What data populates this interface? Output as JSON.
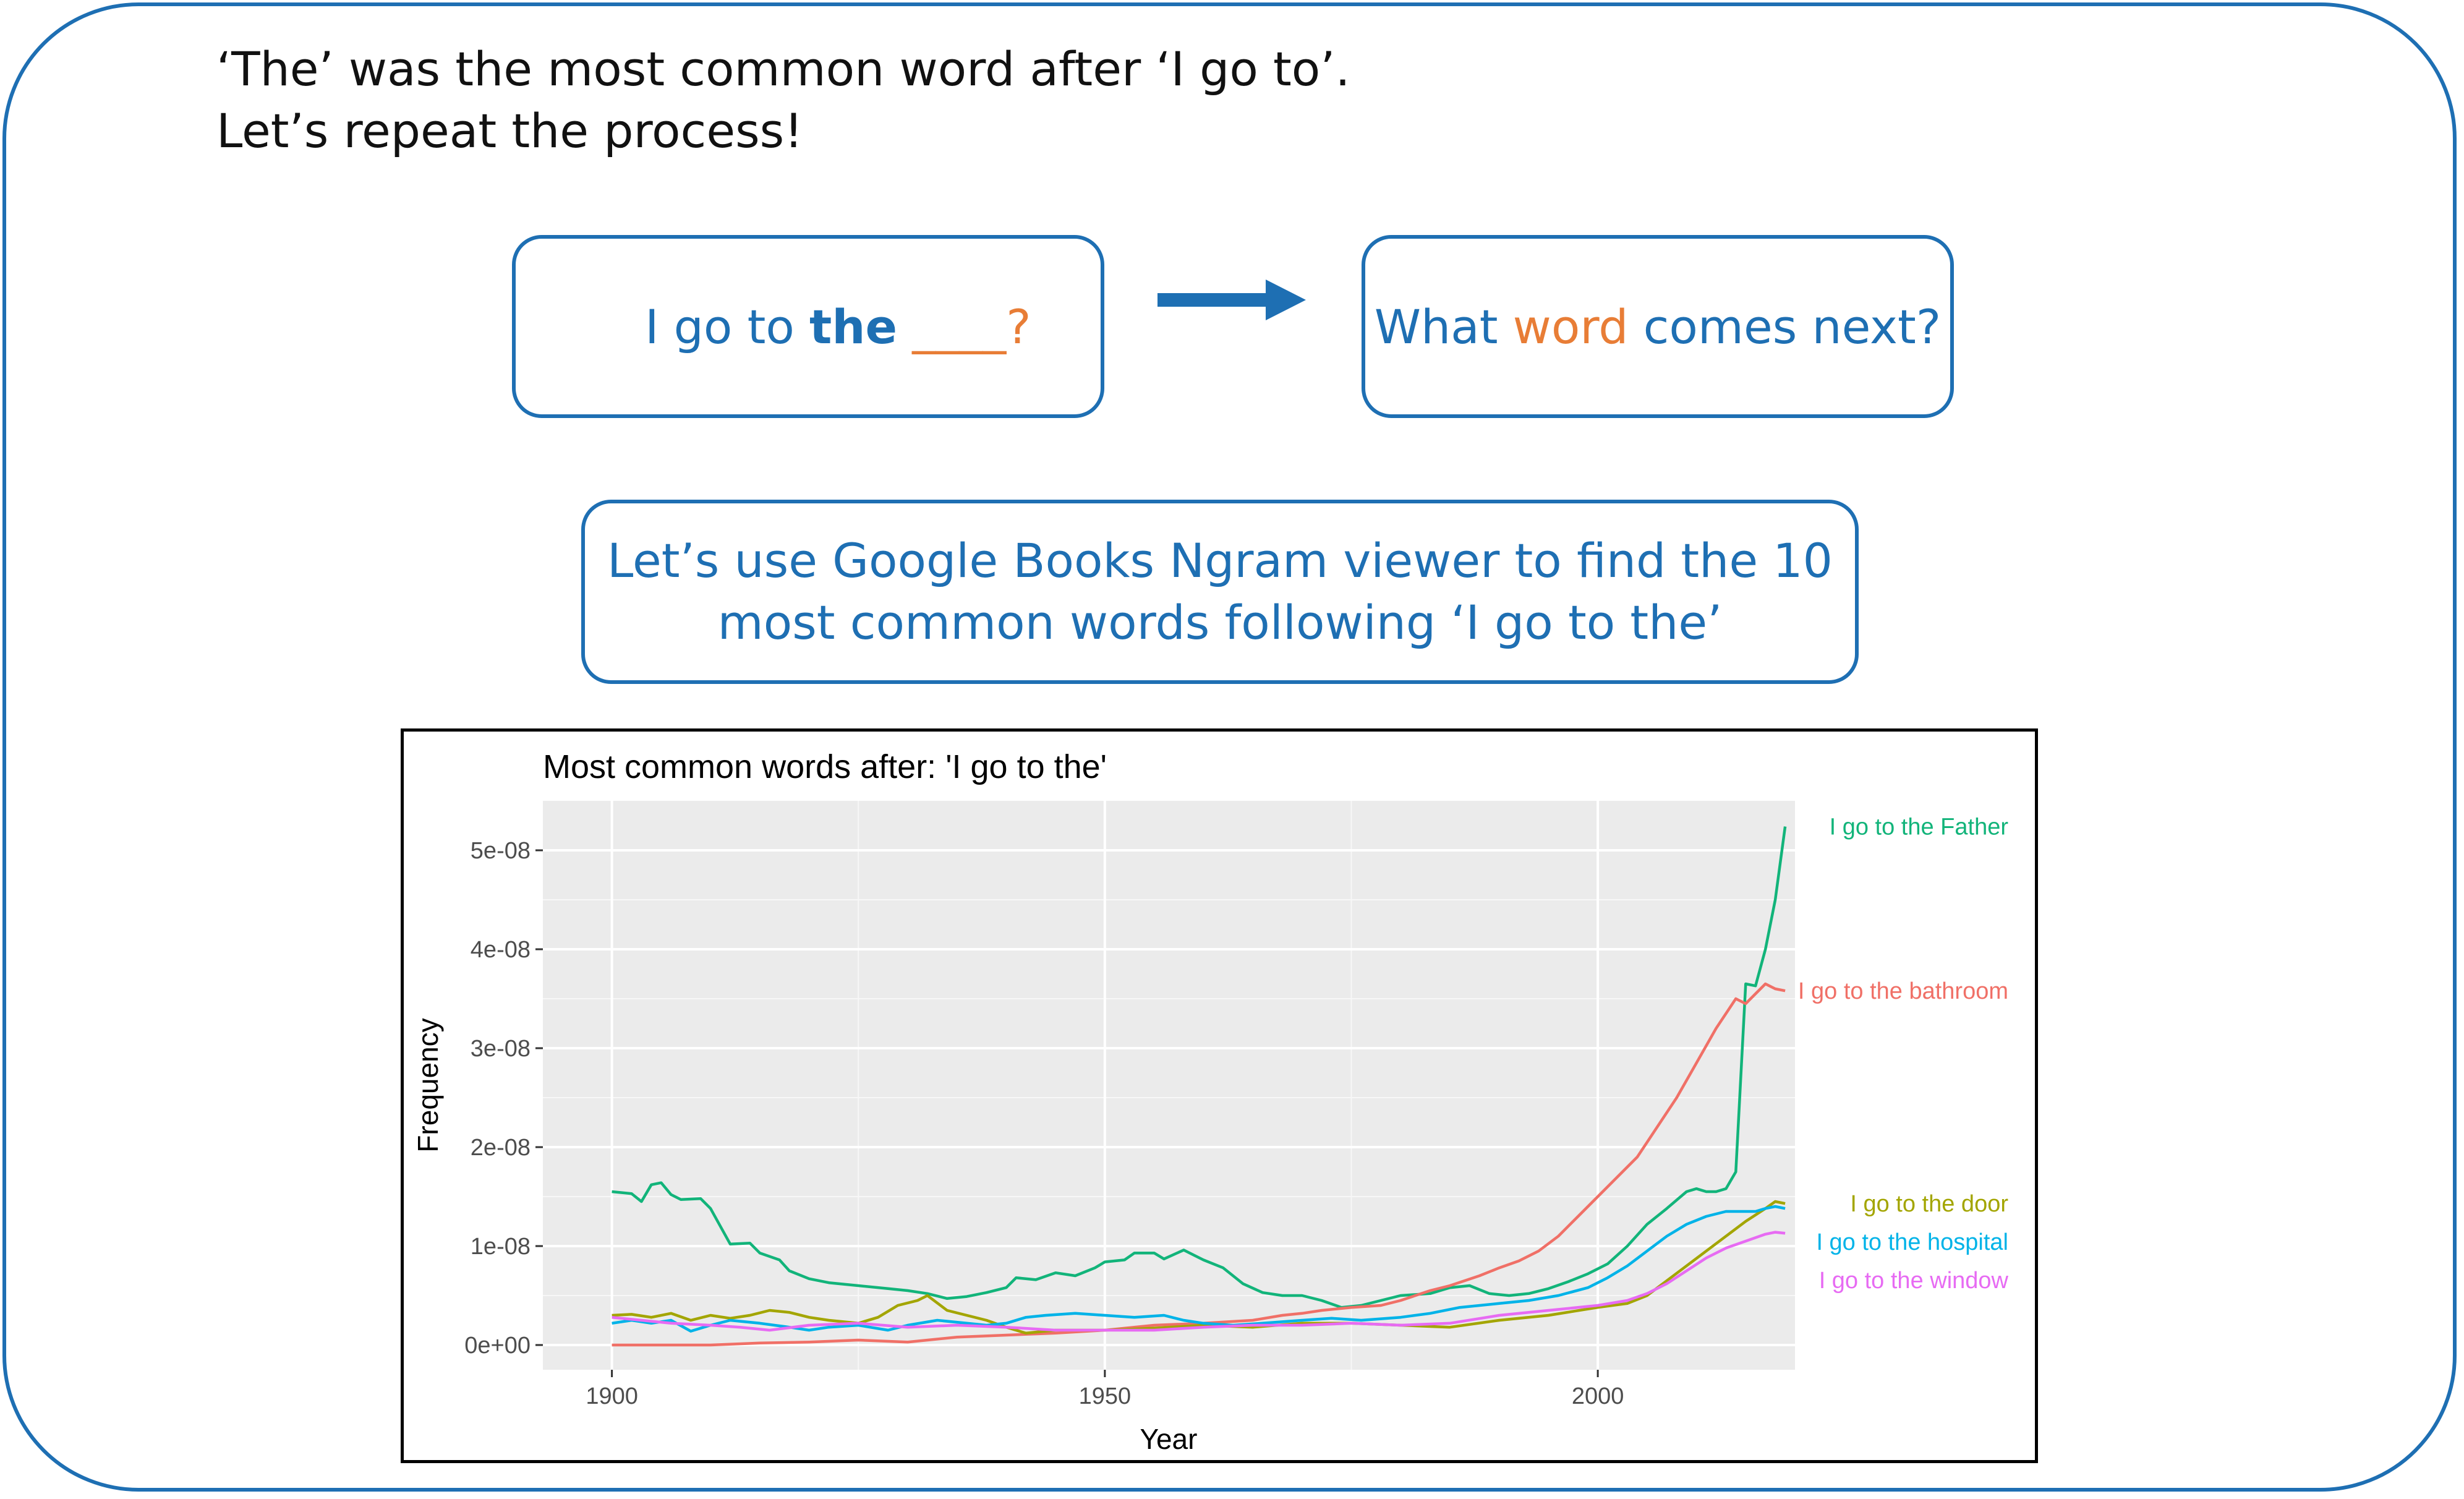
{
  "intro": {
    "line1": "‘The’ was the most common word after ‘I go to’.",
    "line2": "Let’s repeat the process!"
  },
  "prompt_box": {
    "prefix": "I go to ",
    "bold": "the",
    "blank": " ____?"
  },
  "question_box": {
    "part1": "What ",
    "accent": "word",
    "part2": " comes next?"
  },
  "ngram_box": {
    "line1": "Let’s use Google Books Ngram viewer to find the 10",
    "line2": "most common words following ‘I go to the’"
  },
  "colors": {
    "accent_blue": "#1e6fb3",
    "accent_orange": "#e87d36"
  },
  "chart_data": {
    "type": "line",
    "title": "Most common words after: 'I go to the'",
    "xlabel": "Year",
    "ylabel": "Frequency",
    "xlim": [
      1893,
      2020
    ],
    "ylim": [
      -2.5e-09,
      5.5e-08
    ],
    "x_ticks": [
      1900,
      1950,
      2000
    ],
    "x_tick_labels": [
      "1900",
      "1950",
      "2000"
    ],
    "y_ticks": [
      0,
      1e-08,
      2e-08,
      3e-08,
      4e-08,
      5e-08
    ],
    "y_tick_labels": [
      "0e+00",
      "1e-08",
      "2e-08",
      "3e-08",
      "4e-08",
      "5e-08"
    ],
    "grid": true,
    "legend": "direct labels at right",
    "series": [
      {
        "name": "I go to the Father",
        "color": "#12b47a",
        "points": [
          [
            1900,
            1.55e-08
          ],
          [
            1902,
            1.53e-08
          ],
          [
            1903,
            1.45e-08
          ],
          [
            1904,
            1.62e-08
          ],
          [
            1905,
            1.64e-08
          ],
          [
            1906,
            1.52e-08
          ],
          [
            1907,
            1.47e-08
          ],
          [
            1909,
            1.48e-08
          ],
          [
            1910,
            1.38e-08
          ],
          [
            1912,
            1.02e-08
          ],
          [
            1914,
            1.03e-08
          ],
          [
            1915,
            9.3e-09
          ],
          [
            1917,
            8.6e-09
          ],
          [
            1918,
            7.5e-09
          ],
          [
            1920,
            6.7e-09
          ],
          [
            1922,
            6.3e-09
          ],
          [
            1925,
            6e-09
          ],
          [
            1928,
            5.7e-09
          ],
          [
            1930,
            5.5e-09
          ],
          [
            1932,
            5.2e-09
          ],
          [
            1934,
            4.7e-09
          ],
          [
            1936,
            4.9e-09
          ],
          [
            1938,
            5.3e-09
          ],
          [
            1940,
            5.8e-09
          ],
          [
            1941,
            6.8e-09
          ],
          [
            1943,
            6.6e-09
          ],
          [
            1945,
            7.3e-09
          ],
          [
            1947,
            7e-09
          ],
          [
            1949,
            7.8e-09
          ],
          [
            1950,
            8.4e-09
          ],
          [
            1952,
            8.6e-09
          ],
          [
            1953,
            9.3e-09
          ],
          [
            1955,
            9.3e-09
          ],
          [
            1956,
            8.7e-09
          ],
          [
            1958,
            9.6e-09
          ],
          [
            1960,
            8.6e-09
          ],
          [
            1962,
            7.8e-09
          ],
          [
            1964,
            6.2e-09
          ],
          [
            1966,
            5.3e-09
          ],
          [
            1968,
            5e-09
          ],
          [
            1970,
            5e-09
          ],
          [
            1972,
            4.5e-09
          ],
          [
            1974,
            3.8e-09
          ],
          [
            1976,
            4e-09
          ],
          [
            1978,
            4.5e-09
          ],
          [
            1980,
            5e-09
          ],
          [
            1983,
            5.2e-09
          ],
          [
            1985,
            5.8e-09
          ],
          [
            1987,
            6e-09
          ],
          [
            1989,
            5.2e-09
          ],
          [
            1991,
            5e-09
          ],
          [
            1993,
            5.2e-09
          ],
          [
            1995,
            5.7e-09
          ],
          [
            1997,
            6.4e-09
          ],
          [
            1999,
            7.2e-09
          ],
          [
            2001,
            8.2e-09
          ],
          [
            2003,
            1e-08
          ],
          [
            2005,
            1.22e-08
          ],
          [
            2007,
            1.38e-08
          ],
          [
            2009,
            1.55e-08
          ],
          [
            2010,
            1.58e-08
          ],
          [
            2011,
            1.55e-08
          ],
          [
            2012,
            1.55e-08
          ],
          [
            2013,
            1.58e-08
          ],
          [
            2014,
            1.75e-08
          ],
          [
            2015,
            3.65e-08
          ],
          [
            2016,
            3.63e-08
          ],
          [
            2017,
            4e-08
          ],
          [
            2018,
            4.5e-08
          ],
          [
            2019,
            5.24e-08
          ]
        ]
      },
      {
        "name": "I go to the bathroom",
        "color": "#f07067",
        "points": [
          [
            1900,
            0.0
          ],
          [
            1905,
            0.0
          ],
          [
            1910,
            0.0
          ],
          [
            1915,
            2e-10
          ],
          [
            1920,
            3e-10
          ],
          [
            1925,
            5e-10
          ],
          [
            1930,
            3e-10
          ],
          [
            1935,
            8e-10
          ],
          [
            1940,
            1e-09
          ],
          [
            1945,
            1.2e-09
          ],
          [
            1950,
            1.5e-09
          ],
          [
            1955,
            2e-09
          ],
          [
            1960,
            2.2e-09
          ],
          [
            1965,
            2.5e-09
          ],
          [
            1968,
            3e-09
          ],
          [
            1970,
            3.2e-09
          ],
          [
            1972,
            3.5e-09
          ],
          [
            1975,
            3.8e-09
          ],
          [
            1978,
            4e-09
          ],
          [
            1980,
            4.5e-09
          ],
          [
            1983,
            5.5e-09
          ],
          [
            1985,
            6e-09
          ],
          [
            1988,
            7e-09
          ],
          [
            1990,
            7.8e-09
          ],
          [
            1992,
            8.5e-09
          ],
          [
            1994,
            9.5e-09
          ],
          [
            1996,
            1.1e-08
          ],
          [
            1998,
            1.3e-08
          ],
          [
            2000,
            1.5e-08
          ],
          [
            2002,
            1.7e-08
          ],
          [
            2004,
            1.9e-08
          ],
          [
            2006,
            2.2e-08
          ],
          [
            2008,
            2.5e-08
          ],
          [
            2010,
            2.85e-08
          ],
          [
            2012,
            3.2e-08
          ],
          [
            2014,
            3.5e-08
          ],
          [
            2015,
            3.45e-08
          ],
          [
            2016,
            3.55e-08
          ],
          [
            2017,
            3.65e-08
          ],
          [
            2018,
            3.6e-08
          ],
          [
            2019,
            3.58e-08
          ]
        ]
      },
      {
        "name": "I go to the door",
        "color": "#a3a500",
        "points": [
          [
            1900,
            3e-09
          ],
          [
            1902,
            3.1e-09
          ],
          [
            1904,
            2.8e-09
          ],
          [
            1906,
            3.2e-09
          ],
          [
            1908,
            2.5e-09
          ],
          [
            1910,
            3e-09
          ],
          [
            1912,
            2.7e-09
          ],
          [
            1914,
            3e-09
          ],
          [
            1916,
            3.5e-09
          ],
          [
            1918,
            3.3e-09
          ],
          [
            1920,
            2.8e-09
          ],
          [
            1922,
            2.5e-09
          ],
          [
            1925,
            2.2e-09
          ],
          [
            1927,
            2.8e-09
          ],
          [
            1929,
            4e-09
          ],
          [
            1931,
            4.5e-09
          ],
          [
            1932,
            5e-09
          ],
          [
            1934,
            3.5e-09
          ],
          [
            1936,
            3e-09
          ],
          [
            1938,
            2.5e-09
          ],
          [
            1940,
            1.8e-09
          ],
          [
            1942,
            1.2e-09
          ],
          [
            1945,
            1.5e-09
          ],
          [
            1950,
            1.5e-09
          ],
          [
            1955,
            1.7e-09
          ],
          [
            1960,
            2e-09
          ],
          [
            1965,
            1.8e-09
          ],
          [
            1970,
            2.2e-09
          ],
          [
            1975,
            2.2e-09
          ],
          [
            1980,
            2e-09
          ],
          [
            1985,
            1.8e-09
          ],
          [
            1990,
            2.5e-09
          ],
          [
            1995,
            3e-09
          ],
          [
            2000,
            3.8e-09
          ],
          [
            2003,
            4.2e-09
          ],
          [
            2005,
            5e-09
          ],
          [
            2007,
            6.5e-09
          ],
          [
            2009,
            8e-09
          ],
          [
            2011,
            9.5e-09
          ],
          [
            2013,
            1.1e-08
          ],
          [
            2015,
            1.25e-08
          ],
          [
            2017,
            1.38e-08
          ],
          [
            2018,
            1.45e-08
          ],
          [
            2019,
            1.43e-08
          ]
        ]
      },
      {
        "name": "I go to the hospital",
        "color": "#00b3e8",
        "points": [
          [
            1900,
            2.2e-09
          ],
          [
            1902,
            2.5e-09
          ],
          [
            1904,
            2.2e-09
          ],
          [
            1906,
            2.5e-09
          ],
          [
            1908,
            1.4e-09
          ],
          [
            1910,
            2e-09
          ],
          [
            1912,
            2.5e-09
          ],
          [
            1915,
            2.2e-09
          ],
          [
            1918,
            1.8e-09
          ],
          [
            1920,
            1.5e-09
          ],
          [
            1922,
            1.8e-09
          ],
          [
            1925,
            2e-09
          ],
          [
            1928,
            1.5e-09
          ],
          [
            1930,
            2e-09
          ],
          [
            1933,
            2.5e-09
          ],
          [
            1936,
            2.2e-09
          ],
          [
            1938,
            2e-09
          ],
          [
            1940,
            2.2e-09
          ],
          [
            1942,
            2.8e-09
          ],
          [
            1944,
            3e-09
          ],
          [
            1947,
            3.2e-09
          ],
          [
            1950,
            3e-09
          ],
          [
            1953,
            2.8e-09
          ],
          [
            1956,
            3e-09
          ],
          [
            1958,
            2.5e-09
          ],
          [
            1960,
            2.2e-09
          ],
          [
            1963,
            2e-09
          ],
          [
            1966,
            2.2e-09
          ],
          [
            1970,
            2.5e-09
          ],
          [
            1973,
            2.7e-09
          ],
          [
            1976,
            2.5e-09
          ],
          [
            1980,
            2.8e-09
          ],
          [
            1983,
            3.2e-09
          ],
          [
            1986,
            3.8e-09
          ],
          [
            1990,
            4.2e-09
          ],
          [
            1993,
            4.5e-09
          ],
          [
            1996,
            5e-09
          ],
          [
            1999,
            5.8e-09
          ],
          [
            2001,
            6.8e-09
          ],
          [
            2003,
            8e-09
          ],
          [
            2005,
            9.5e-09
          ],
          [
            2007,
            1.1e-08
          ],
          [
            2009,
            1.22e-08
          ],
          [
            2011,
            1.3e-08
          ],
          [
            2013,
            1.35e-08
          ],
          [
            2015,
            1.35e-08
          ],
          [
            2016,
            1.35e-08
          ],
          [
            2017,
            1.38e-08
          ],
          [
            2018,
            1.4e-08
          ],
          [
            2019,
            1.38e-08
          ]
        ]
      },
      {
        "name": "I go to the window",
        "color": "#e76bf3",
        "points": [
          [
            1900,
            2.8e-09
          ],
          [
            1903,
            2.5e-09
          ],
          [
            1906,
            2.2e-09
          ],
          [
            1910,
            2e-09
          ],
          [
            1913,
            1.8e-09
          ],
          [
            1916,
            1.5e-09
          ],
          [
            1920,
            2e-09
          ],
          [
            1925,
            2.2e-09
          ],
          [
            1930,
            1.8e-09
          ],
          [
            1935,
            2e-09
          ],
          [
            1940,
            1.8e-09
          ],
          [
            1945,
            1.5e-09
          ],
          [
            1950,
            1.5e-09
          ],
          [
            1955,
            1.5e-09
          ],
          [
            1960,
            1.8e-09
          ],
          [
            1965,
            2e-09
          ],
          [
            1970,
            2e-09
          ],
          [
            1975,
            2.2e-09
          ],
          [
            1980,
            2e-09
          ],
          [
            1985,
            2.2e-09
          ],
          [
            1990,
            3e-09
          ],
          [
            1995,
            3.5e-09
          ],
          [
            2000,
            4e-09
          ],
          [
            2003,
            4.5e-09
          ],
          [
            2005,
            5.2e-09
          ],
          [
            2007,
            6.2e-09
          ],
          [
            2009,
            7.5e-09
          ],
          [
            2011,
            8.8e-09
          ],
          [
            2013,
            9.8e-09
          ],
          [
            2015,
            1.05e-08
          ],
          [
            2017,
            1.12e-08
          ],
          [
            2018,
            1.14e-08
          ],
          [
            2019,
            1.13e-08
          ]
        ]
      }
    ]
  }
}
